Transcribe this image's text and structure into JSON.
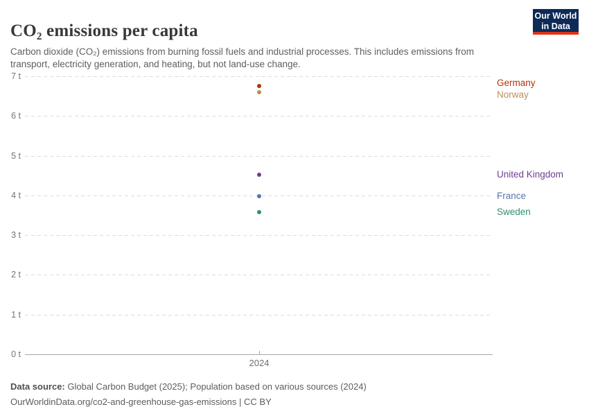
{
  "header": {
    "title": "CO₂ emissions per capita",
    "subtitle": "Carbon dioxide (CO₂) emissions from burning fossil fuels and industrial processes. This includes emissions from transport, electricity generation, and heating, but not land-use change.",
    "logo": {
      "line1": "Our World",
      "line2": "in Data",
      "bg_color": "#0e2a57",
      "bar_color": "#e13417"
    }
  },
  "chart_data": {
    "type": "scatter",
    "title": "CO₂ emissions per capita",
    "x": [
      2024
    ],
    "xticks": [
      "2024"
    ],
    "ylim": [
      0,
      7
    ],
    "yticks": [
      "0 t",
      "1 t",
      "2 t",
      "3 t",
      "4 t",
      "5 t",
      "6 t",
      "7 t"
    ],
    "xlabel": "",
    "ylabel": "",
    "grid": "horizontal-dashed",
    "legend_position": "right-entity-labels",
    "series": [
      {
        "name": "Germany",
        "color": "#b13507",
        "values": [
          6.75
        ]
      },
      {
        "name": "Norway",
        "color": "#bc8e5a",
        "values": [
          6.6
        ]
      },
      {
        "name": "United Kingdom",
        "color": "#6d3e91",
        "values": [
          4.52
        ]
      },
      {
        "name": "France",
        "color": "#5675b4",
        "values": [
          3.98
        ]
      },
      {
        "name": "Sweden",
        "color": "#2f8e73",
        "values": [
          3.58
        ]
      }
    ]
  },
  "footer": {
    "source_label": "Data source:",
    "source_text": " Global Carbon Budget (2025); Population based on various sources (2024)",
    "url_line": "OurWorldinData.org/co2-and-greenhouse-gas-emissions | CC BY"
  }
}
